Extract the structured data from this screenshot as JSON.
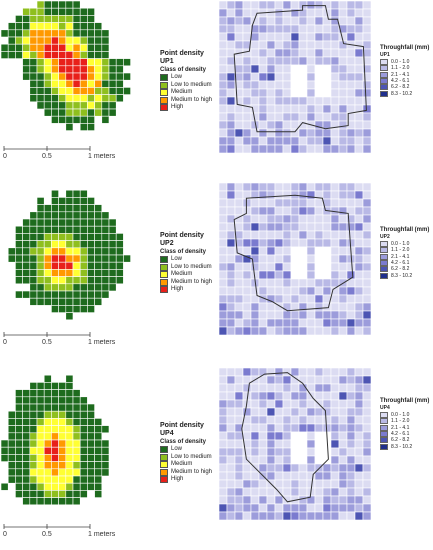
{
  "chart_data": [
    {
      "type": "heatmap",
      "panel": "UP1",
      "density_title": "Point density",
      "density_name": "UP1",
      "density_class_label": "Class of density",
      "density_classes": [
        "Low",
        "Low to medium",
        "Medium",
        "Medium to high",
        "High"
      ],
      "throughfall_title": "Throughfall (mm)",
      "throughfall_name": "UP1",
      "throughfall_classes": [
        "0.0 - 1.0",
        "1.1 - 2.0",
        "2.1 - 4.1",
        "4.2 - 6.1",
        "6.2 - 8.2",
        "8.3 - 10.2"
      ],
      "scale_labels": [
        "0",
        "0.5",
        "1 meters"
      ]
    },
    {
      "type": "heatmap",
      "panel": "UP2",
      "density_title": "Point density",
      "density_name": "UP2",
      "density_class_label": "Class of density",
      "density_classes": [
        "Low",
        "Low to medium",
        "Medium",
        "Medium to high",
        "High"
      ],
      "throughfall_title": "Throughfall (mm)",
      "throughfall_name": "UP2",
      "throughfall_classes": [
        "0.0 - 1.0",
        "1.1 - 2.0",
        "2.1 - 4.1",
        "4.2 - 6.1",
        "6.2 - 8.2",
        "8.3 - 10.2"
      ],
      "scale_labels": [
        "0",
        "0.5",
        "1 meters"
      ]
    },
    {
      "type": "heatmap",
      "panel": "UP4",
      "density_title": "Point density",
      "density_name": "UP4",
      "density_class_label": "Class of density",
      "density_classes": [
        "Low",
        "Low to medium",
        "Medium",
        "Medium to high",
        "High"
      ],
      "throughfall_title": "Throughfall (mm)",
      "throughfall_name": "UP4",
      "throughfall_classes": [
        "0.0 - 1.0",
        "1.1 - 2.0",
        "2.1 - 4.1",
        "4.2 - 6.1",
        "6.2 - 8.2",
        "8.3 - 10.2"
      ],
      "scale_labels": [
        "0",
        "0.5",
        "1 meters"
      ]
    }
  ],
  "colors": {
    "density": [
      "#1e6b1e",
      "#8fbf1e",
      "#ffff33",
      "#ff9900",
      "#e8201a"
    ],
    "throughfall": [
      "#dcdcf2",
      "#b9b9e6",
      "#9c9cdb",
      "#7b7bcf",
      "#4d55b3",
      "#1f2f8c"
    ],
    "grid_line": "#ffffff",
    "outline": "#333333"
  }
}
